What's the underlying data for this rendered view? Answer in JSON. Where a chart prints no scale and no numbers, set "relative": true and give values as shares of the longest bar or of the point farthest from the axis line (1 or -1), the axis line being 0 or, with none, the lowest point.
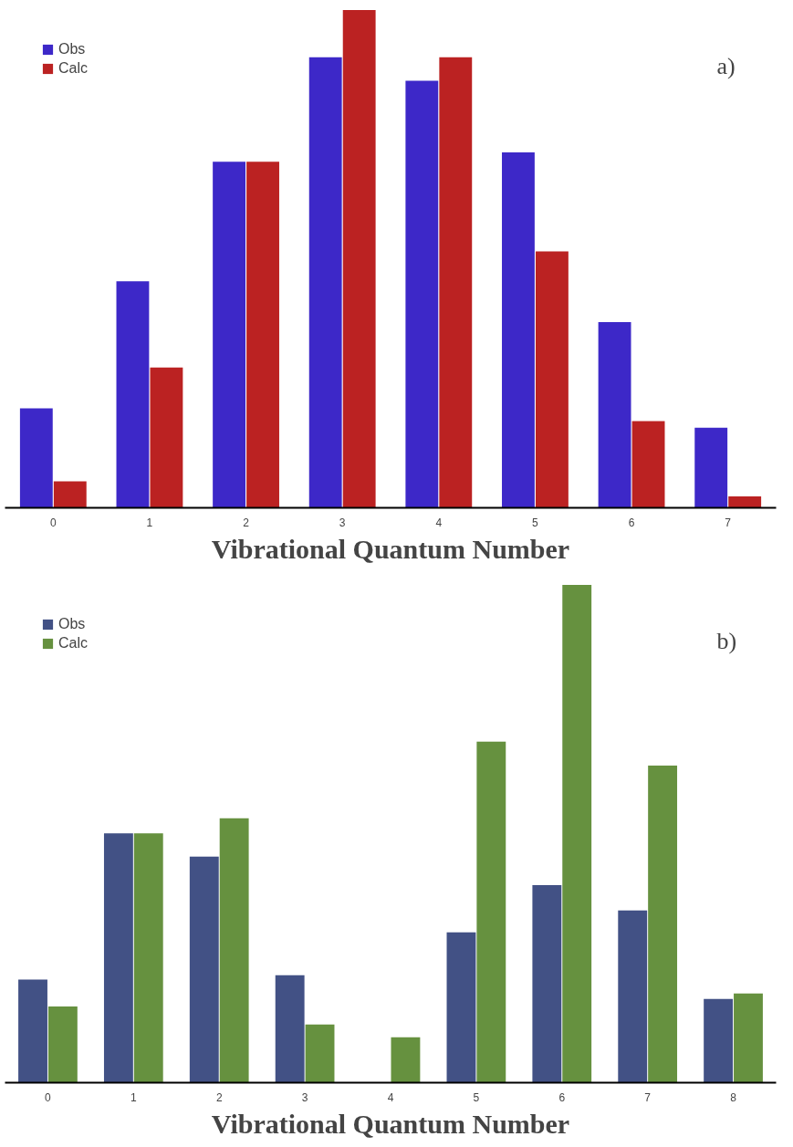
{
  "chart_data": [
    {
      "type": "bar",
      "relative": true,
      "xlabel": "Vibrational Quantum Number",
      "annotations": [
        "a)"
      ],
      "legend": "top left",
      "grid": false,
      "categories": [
        "0",
        "1",
        "2",
        "3",
        "4",
        "5",
        "6",
        "7"
      ],
      "series": [
        {
          "name": "Obs",
          "color": "#3d28c8",
          "values": [
            0.2,
            0.455,
            0.695,
            0.905,
            0.858,
            0.714,
            0.373,
            0.161
          ]
        },
        {
          "name": "Calc",
          "color": "#bb2222",
          "values": [
            0.053,
            0.282,
            0.695,
            1,
            0.905,
            0.515,
            0.174,
            0.023
          ]
        }
      ]
    },
    {
      "type": "bar",
      "relative": true,
      "xlabel": "Vibrational Quantum Number",
      "annotations": [
        "b)"
      ],
      "legend": "top left",
      "grid": false,
      "categories": [
        "0",
        "1",
        "2",
        "3",
        "4",
        "5",
        "6",
        "7",
        "8"
      ],
      "series": [
        {
          "name": "Obs",
          "color": "#425185",
          "values": [
            0.207,
            0.501,
            0.454,
            0.216,
            0,
            0.302,
            0.397,
            0.346,
            0.168
          ]
        },
        {
          "name": "Calc",
          "color": "#66913f",
          "values": [
            0.153,
            0.501,
            0.531,
            0.117,
            0.091,
            0.685,
            1,
            0.637,
            0.179
          ]
        }
      ]
    }
  ]
}
